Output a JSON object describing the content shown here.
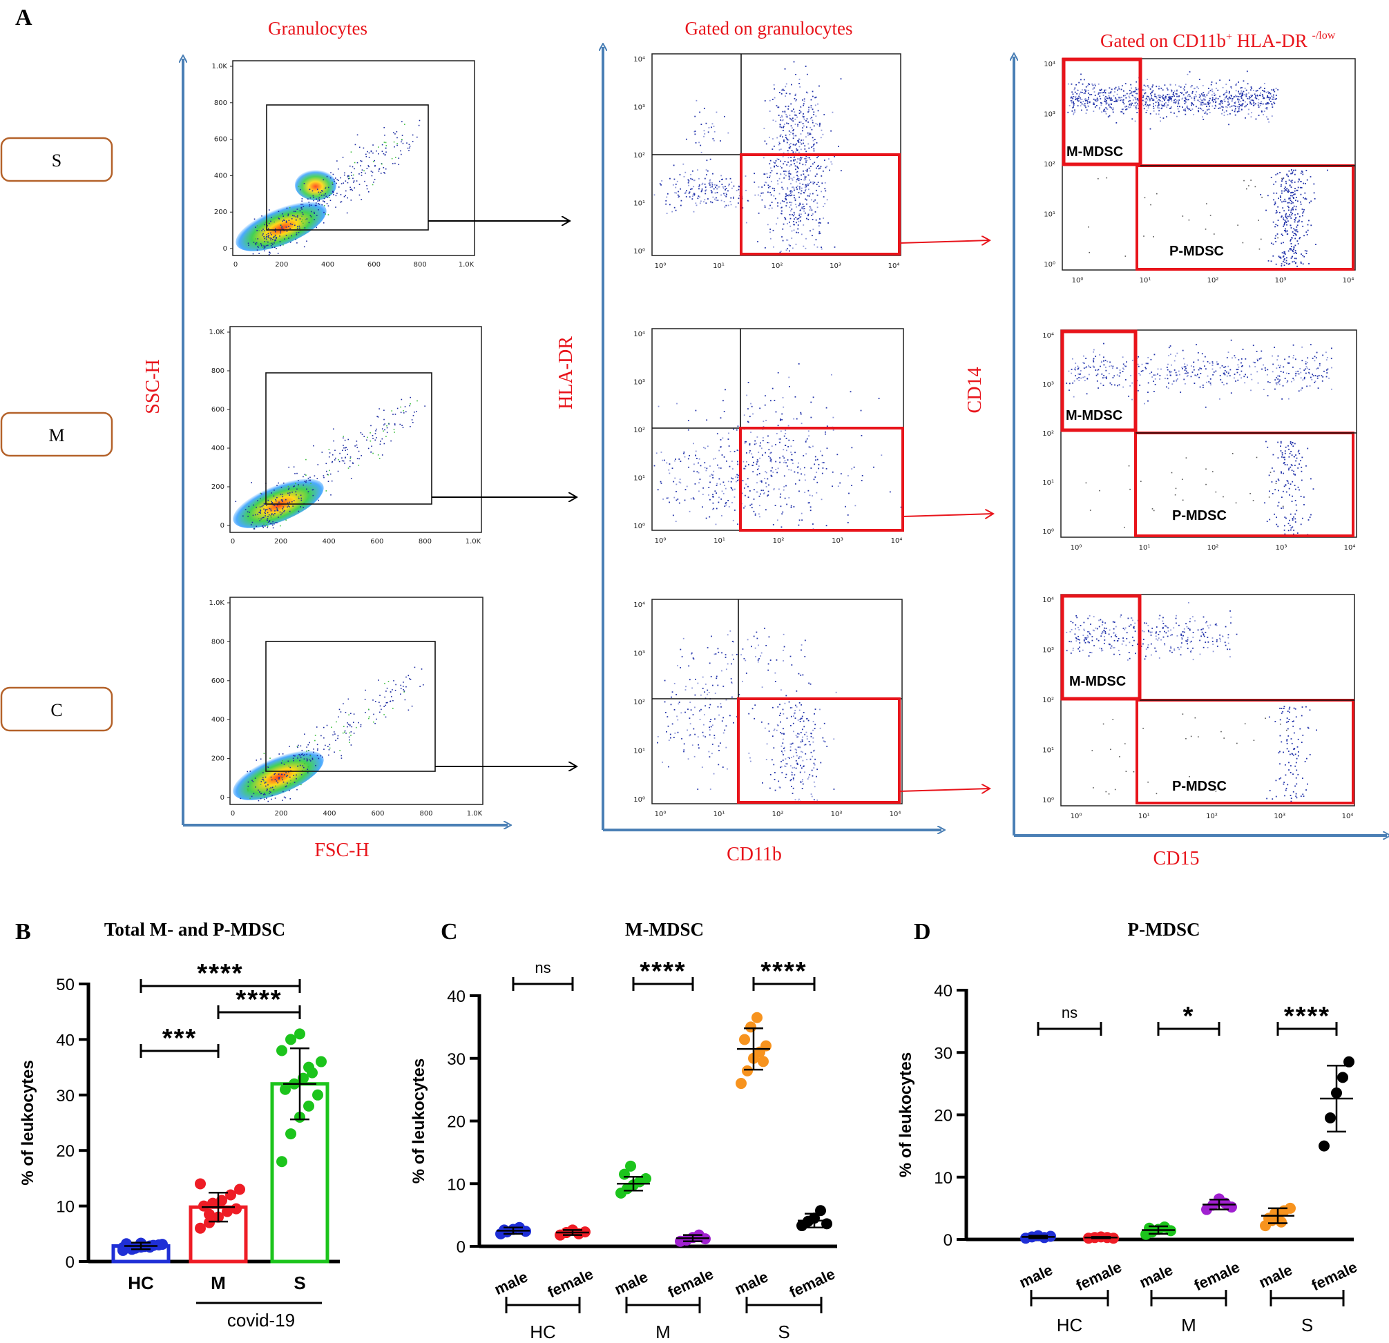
{
  "panel_a": {
    "letter": "A",
    "col_titles": [
      "Granulocytes",
      "Gated on granulocytes",
      "Gated on CD11b"
    ],
    "col3_title_sup1": "+",
    "col3_title_mid": " HLA-DR ",
    "col3_title_sup2": "-/low",
    "rows": [
      "S",
      "M",
      "C"
    ],
    "axes": {
      "ssc": "SSC-H",
      "fsc": "FSC-H",
      "hladr": "HLA-DR",
      "cd11b": "CD11b",
      "cd14": "CD14",
      "cd15": "CD15"
    },
    "lin_ticks_y": [
      "1.0K",
      "800",
      "600",
      "400",
      "200",
      "0"
    ],
    "lin_ticks_x": [
      "0",
      "200",
      "400",
      "600",
      "800",
      "1.0K"
    ],
    "log_ticks": [
      "10⁰",
      "10¹",
      "10²",
      "10³",
      "10⁴"
    ],
    "gate_labels": {
      "m": "M-MDSC",
      "p": "P-MDSC"
    },
    "colors": {
      "gate_red": "#e8141b",
      "axis_blue": "#4a7fb5",
      "dot_blue": "#2233aa"
    }
  },
  "chart_data": [
    {
      "panel": "B",
      "type": "bar",
      "title": "Total M- and P-MDSC",
      "ylabel": "% of leukocytes",
      "ylim": [
        0,
        50
      ],
      "yticks": [
        0,
        10,
        20,
        30,
        40,
        50
      ],
      "categories": [
        "HC",
        "M",
        "S"
      ],
      "group_label": "covid-19",
      "colors": [
        "#1f2fd6",
        "#ee1c25",
        "#1cc41c"
      ],
      "means": [
        2.8,
        9.8,
        32.0
      ],
      "sd": [
        0.6,
        2.6,
        6.4
      ],
      "points": [
        [
          2.0,
          2.3,
          2.6,
          2.8,
          3.0,
          3.2,
          2.4,
          2.7,
          2.9,
          3.1,
          2.5,
          2.2,
          3.3,
          2.6
        ],
        [
          6.0,
          7.0,
          8.0,
          9.0,
          9.5,
          10.0,
          10.5,
          11.0,
          12.0,
          13.0,
          14.0,
          8.5
        ],
        [
          18.0,
          23.0,
          26.0,
          28.0,
          30.0,
          31.0,
          32.0,
          33.0,
          34.0,
          36.0,
          38.0,
          40.0,
          41.0,
          35.0
        ]
      ],
      "significance": [
        {
          "from": 0,
          "to": 2,
          "label": "****"
        },
        {
          "from": 1,
          "to": 2,
          "label": "****"
        },
        {
          "from": 0,
          "to": 1,
          "label": "***"
        }
      ]
    },
    {
      "panel": "C",
      "type": "scatter",
      "title": "M-MDSC",
      "ylabel": "% of leukocytes",
      "ylim": [
        0,
        40
      ],
      "yticks": [
        0,
        10,
        20,
        30,
        40
      ],
      "categories": [
        "male",
        "female",
        "male",
        "female",
        "male",
        "female"
      ],
      "groups": [
        "HC",
        "M",
        "S"
      ],
      "colors": [
        "#1f2fd6",
        "#ee1c25",
        "#1cc41c",
        "#a020d0",
        "#f7931e",
        "#000000"
      ],
      "means": [
        2.5,
        2.2,
        10.0,
        1.3,
        31.5,
        4.1
      ],
      "sd": [
        0.5,
        0.4,
        1.1,
        0.5,
        3.3,
        1.1
      ],
      "points": [
        [
          2.0,
          2.3,
          2.7,
          3.0,
          2.4,
          2.6
        ],
        [
          1.8,
          2.2,
          2.6,
          2.0,
          2.3
        ],
        [
          8.5,
          9.2,
          9.8,
          10.3,
          10.8,
          11.5,
          12.8
        ],
        [
          0.8,
          1.0,
          1.4,
          1.8,
          1.2
        ],
        [
          26.0,
          28.0,
          30.0,
          31.0,
          32.0,
          33.0,
          35.0,
          36.5,
          29.5
        ],
        [
          3.3,
          4.0,
          4.5,
          5.7,
          3.6
        ]
      ],
      "significance": [
        {
          "from": 0,
          "to": 1,
          "label": "ns"
        },
        {
          "from": 2,
          "to": 3,
          "label": "****"
        },
        {
          "from": 4,
          "to": 5,
          "label": "****"
        }
      ]
    },
    {
      "panel": "D",
      "type": "scatter",
      "title": "P-MDSC",
      "ylabel": "% of leukocytes",
      "ylim": [
        0,
        40
      ],
      "yticks": [
        0,
        10,
        20,
        30,
        40
      ],
      "categories": [
        "male",
        "female",
        "male",
        "female",
        "male",
        "female"
      ],
      "groups": [
        "HC",
        "M",
        "S"
      ],
      "colors": [
        "#1f2fd6",
        "#ee1c25",
        "#1cc41c",
        "#a020d0",
        "#f7931e",
        "#000000"
      ],
      "means": [
        0.4,
        0.3,
        1.5,
        5.6,
        3.8,
        22.6
      ],
      "sd": [
        0.2,
        0.1,
        0.6,
        0.8,
        1.2,
        5.3
      ],
      "points": [
        [
          0.2,
          0.4,
          0.6,
          0.3,
          0.5
        ],
        [
          0.2,
          0.3,
          0.4,
          0.3,
          0.2
        ],
        [
          0.8,
          1.2,
          1.6,
          2.0,
          1.4,
          1.8
        ],
        [
          4.8,
          5.5,
          6.5,
          5.8,
          5.2
        ],
        [
          2.2,
          3.0,
          3.8,
          4.6,
          5.0,
          3.4,
          4.2,
          2.8
        ],
        [
          15.0,
          19.5,
          23.5,
          26.0,
          28.5
        ]
      ],
      "significance": [
        {
          "from": 0,
          "to": 1,
          "label": "ns"
        },
        {
          "from": 2,
          "to": 3,
          "label": "*"
        },
        {
          "from": 4,
          "to": 5,
          "label": "****"
        }
      ]
    }
  ]
}
